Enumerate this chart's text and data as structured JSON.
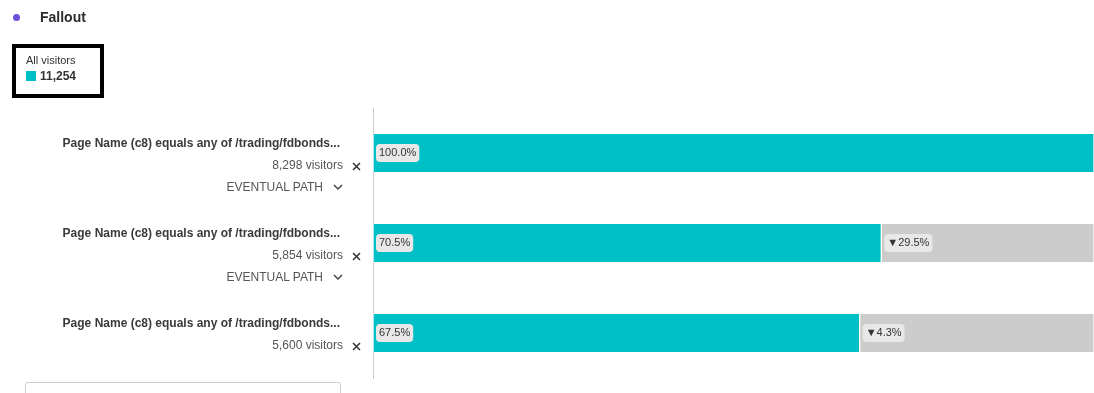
{
  "chart_data": {
    "type": "bar",
    "title": "Fallout",
    "orientation": "horizontal",
    "stacked": true,
    "legend": "top left",
    "legend_title": "All visitors",
    "categories": [
      "Page Name (c8) equals any of /trading/fdbonds...",
      "Page Name (c8) equals any of /trading/fdbonds...",
      "Page Name (c8) equals any of /trading/fdbonds..."
    ],
    "series": [
      {
        "name": "11,254",
        "color": "#00c0c7",
        "values": [
          100,
          70.5,
          67.5
        ],
        "value_labels": [
          "100.0%",
          "70.5%",
          "67.5%"
        ]
      },
      {
        "color": "#cccccc",
        "values": [
          null,
          29.5,
          32.5
        ]
      }
    ],
    "annotations": [
      "8,298 visitors",
      "EVENTUAL PATH",
      "5,854 visitors",
      "EVENTUAL PATH",
      "5,600 visitors",
      "▼29.5%",
      "▼4.3%"
    ]
  }
}
